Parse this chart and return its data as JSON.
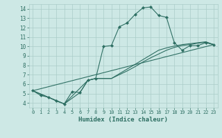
{
  "xlabel": "Humidex (Indice chaleur)",
  "xlim": [
    -0.5,
    23.5
  ],
  "ylim": [
    3.5,
    14.5
  ],
  "xticks": [
    0,
    1,
    2,
    3,
    4,
    5,
    6,
    7,
    8,
    9,
    10,
    11,
    12,
    13,
    14,
    15,
    16,
    17,
    18,
    19,
    20,
    21,
    22,
    23
  ],
  "yticks": [
    4,
    5,
    6,
    7,
    8,
    9,
    10,
    11,
    12,
    13,
    14
  ],
  "background_color": "#cde8e5",
  "grid_color": "#aaccc8",
  "line_color": "#2d6e62",
  "lines": [
    {
      "x": [
        0,
        1,
        2,
        3,
        4,
        5,
        6,
        7,
        8,
        9,
        10,
        11,
        12,
        13,
        14,
        15,
        16,
        17,
        18,
        19,
        20,
        21,
        22,
        23
      ],
      "y": [
        5.3,
        4.8,
        4.6,
        4.2,
        3.9,
        5.2,
        5.1,
        6.4,
        6.6,
        10.0,
        10.1,
        12.1,
        12.5,
        13.4,
        14.1,
        14.2,
        13.3,
        13.1,
        10.4,
        9.6,
        10.1,
        10.1,
        10.4,
        10.2
      ],
      "marker": true
    },
    {
      "x": [
        0,
        4,
        6,
        7,
        8,
        9,
        10,
        11,
        12,
        13,
        14,
        15,
        16,
        17,
        18,
        19,
        20,
        21,
        22,
        23
      ],
      "y": [
        5.3,
        3.9,
        5.1,
        6.4,
        6.6,
        6.6,
        6.6,
        7.1,
        7.6,
        8.1,
        8.6,
        9.1,
        9.6,
        9.85,
        10.05,
        10.2,
        10.3,
        10.4,
        10.5,
        10.2
      ],
      "marker": false
    },
    {
      "x": [
        0,
        4,
        7,
        8,
        9,
        10,
        11,
        12,
        13,
        14,
        15,
        16,
        17,
        18,
        19,
        20,
        21,
        22,
        23
      ],
      "y": [
        5.3,
        3.9,
        6.4,
        6.6,
        6.6,
        6.6,
        7.0,
        7.4,
        7.85,
        8.35,
        8.8,
        9.2,
        9.6,
        9.9,
        10.1,
        10.2,
        10.35,
        10.45,
        10.2
      ],
      "marker": false
    },
    {
      "x": [
        0,
        23
      ],
      "y": [
        5.3,
        10.2
      ],
      "marker": false
    }
  ]
}
